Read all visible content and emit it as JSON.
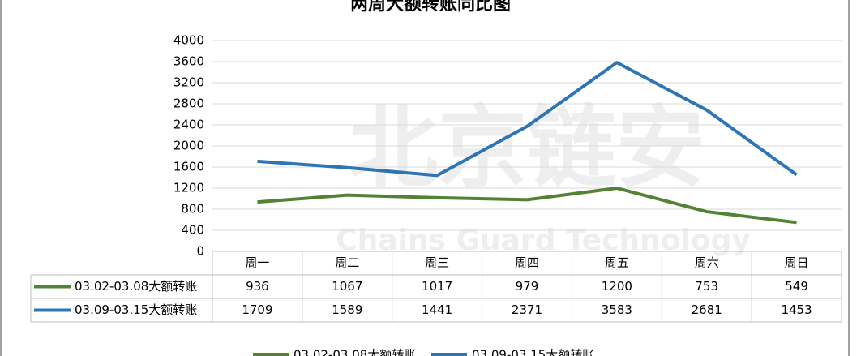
{
  "chart_data": {
    "type": "line",
    "title": "两周大额转账同比图",
    "categories": [
      "周一",
      "周二",
      "周三",
      "周四",
      "周五",
      "周六",
      "周日"
    ],
    "series": [
      {
        "name": "03.02-03.08大额转账",
        "color": "#548235",
        "values": [
          936,
          1067,
          1017,
          979,
          1200,
          753,
          549
        ]
      },
      {
        "name": "03.09-03.15大额转账",
        "color": "#2e75b6",
        "values": [
          1709,
          1589,
          1441,
          2371,
          3583,
          2681,
          1453
        ]
      }
    ],
    "ylim": [
      0,
      4000
    ],
    "yticks": [
      0,
      400,
      800,
      1200,
      1600,
      2000,
      2400,
      2800,
      3200,
      3600,
      4000
    ],
    "grid": true,
    "watermark": {
      "logo": "北京链安",
      "text": "Chains Guard Technology"
    }
  }
}
